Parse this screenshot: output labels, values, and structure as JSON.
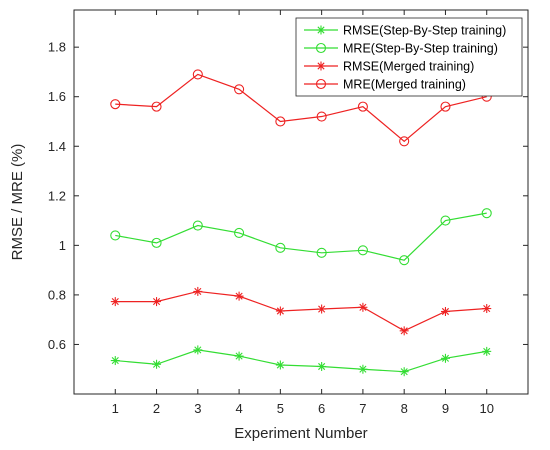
{
  "chart_data": {
    "type": "line",
    "title": "",
    "xlabel": "Experiment Number",
    "ylabel": "RMSE / MRE (%)",
    "x": [
      1,
      2,
      3,
      4,
      5,
      6,
      7,
      8,
      9,
      10
    ],
    "xlim": [
      0,
      11
    ],
    "ylim": [
      0.4,
      1.95
    ],
    "yticks": [
      0.6,
      0.8,
      1,
      1.2,
      1.4,
      1.6,
      1.8
    ],
    "ytick_labels": [
      "0.6",
      "0.8",
      "1",
      "1.2",
      "1.4",
      "1.6",
      "1.8"
    ],
    "xtick_labels": [
      "1",
      "2",
      "3",
      "4",
      "5",
      "6",
      "7",
      "8",
      "9",
      "10"
    ],
    "grid": false,
    "legend_position": "top-right",
    "series": [
      {
        "name": "RMSE(Step-By-Step training)",
        "marker": "star",
        "color": "#33dd33",
        "values": [
          0.535,
          0.52,
          0.578,
          0.553,
          0.517,
          0.511,
          0.5,
          0.49,
          0.544,
          0.572
        ]
      },
      {
        "name": "MRE(Step-By-Step training)",
        "marker": "circle",
        "color": "#33dd33",
        "values": [
          1.04,
          1.01,
          1.08,
          1.05,
          0.99,
          0.97,
          0.98,
          0.94,
          1.1,
          1.13
        ]
      },
      {
        "name": "RMSE(Merged training)",
        "marker": "star",
        "color": "#ee2222",
        "values": [
          0.773,
          0.773,
          0.814,
          0.795,
          0.735,
          0.743,
          0.75,
          0.655,
          0.733,
          0.745
        ]
      },
      {
        "name": "MRE(Merged training)",
        "marker": "circle",
        "color": "#ee2222",
        "values": [
          1.57,
          1.56,
          1.69,
          1.63,
          1.5,
          1.52,
          1.56,
          1.42,
          1.56,
          1.6
        ]
      }
    ]
  }
}
